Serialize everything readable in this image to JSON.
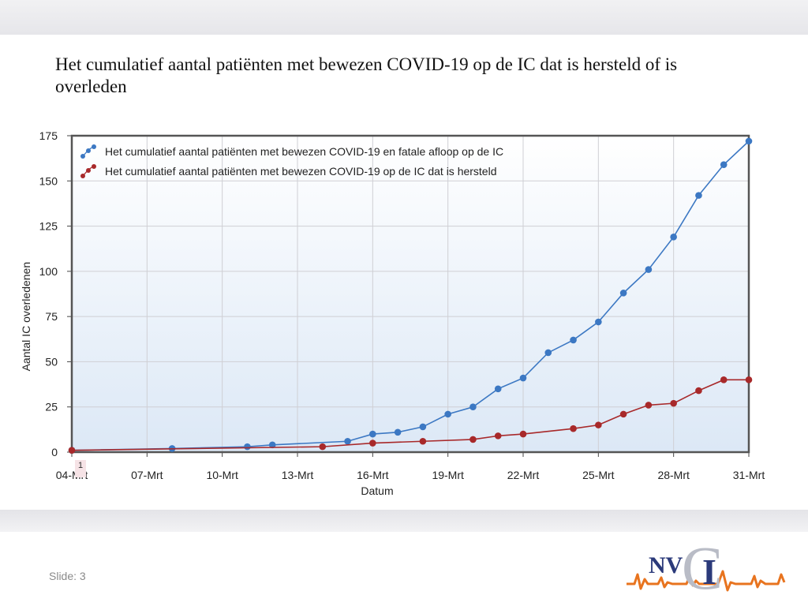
{
  "slide": {
    "title": "Het cumulatief aantal patiënten met bewezen COVID-19 op de IC dat is hersteld of is overleden",
    "slide_label": "Slide: 3"
  },
  "logo": {
    "text_nv": "NV",
    "text_i": "I",
    "text_c": "C",
    "colors": {
      "navy": "#2b3a7a",
      "orange": "#e8741f",
      "gray": "#b9bcc6"
    }
  },
  "chart_data": {
    "type": "line",
    "xlabel": "Datum",
    "ylabel": "Aantal IC overledenen",
    "ylim": [
      0,
      175
    ],
    "yticks": [
      0,
      25,
      50,
      75,
      100,
      125,
      150,
      175
    ],
    "x_ticks": [
      "04-Mrt",
      "07-Mrt",
      "10-Mrt",
      "13-Mrt",
      "16-Mrt",
      "19-Mrt",
      "22-Mrt",
      "25-Mrt",
      "28-Mrt",
      "31-Mrt"
    ],
    "x_range": [
      "04-Mrt",
      "31-Mrt"
    ],
    "grid": true,
    "legend_position": "top-left",
    "marker_label": "1",
    "series": [
      {
        "name": "Het cumulatief aantal patiënten met bewezen COVID-19 en fatale afloop op de IC",
        "color": "#3c78c3",
        "points": [
          [
            "04-Mrt",
            1
          ],
          [
            "08-Mrt",
            2
          ],
          [
            "11-Mrt",
            3
          ],
          [
            "12-Mrt",
            4
          ],
          [
            "15-Mrt",
            6
          ],
          [
            "16-Mrt",
            10
          ],
          [
            "17-Mrt",
            11
          ],
          [
            "18-Mrt",
            14
          ],
          [
            "19-Mrt",
            21
          ],
          [
            "20-Mrt",
            25
          ],
          [
            "21-Mrt",
            35
          ],
          [
            "22-Mrt",
            41
          ],
          [
            "23-Mrt",
            55
          ],
          [
            "24-Mrt",
            62
          ],
          [
            "25-Mrt",
            72
          ],
          [
            "26-Mrt",
            88
          ],
          [
            "27-Mrt",
            101
          ],
          [
            "28-Mrt",
            119
          ],
          [
            "29-Mrt",
            142
          ],
          [
            "30-Mrt",
            159
          ],
          [
            "31-Mrt",
            172
          ]
        ]
      },
      {
        "name": "Het cumulatief aantal patiënten met bewezen COVID-19 op de IC dat is hersteld",
        "color": "#a8292a",
        "points": [
          [
            "04-Mrt",
            1
          ],
          [
            "14-Mrt",
            3
          ],
          [
            "16-Mrt",
            5
          ],
          [
            "18-Mrt",
            6
          ],
          [
            "20-Mrt",
            7
          ],
          [
            "21-Mrt",
            9
          ],
          [
            "22-Mrt",
            10
          ],
          [
            "24-Mrt",
            13
          ],
          [
            "25-Mrt",
            15
          ],
          [
            "26-Mrt",
            21
          ],
          [
            "27-Mrt",
            26
          ],
          [
            "28-Mrt",
            27
          ],
          [
            "29-Mrt",
            34
          ],
          [
            "30-Mrt",
            40
          ],
          [
            "31-Mrt",
            40
          ]
        ]
      }
    ]
  }
}
